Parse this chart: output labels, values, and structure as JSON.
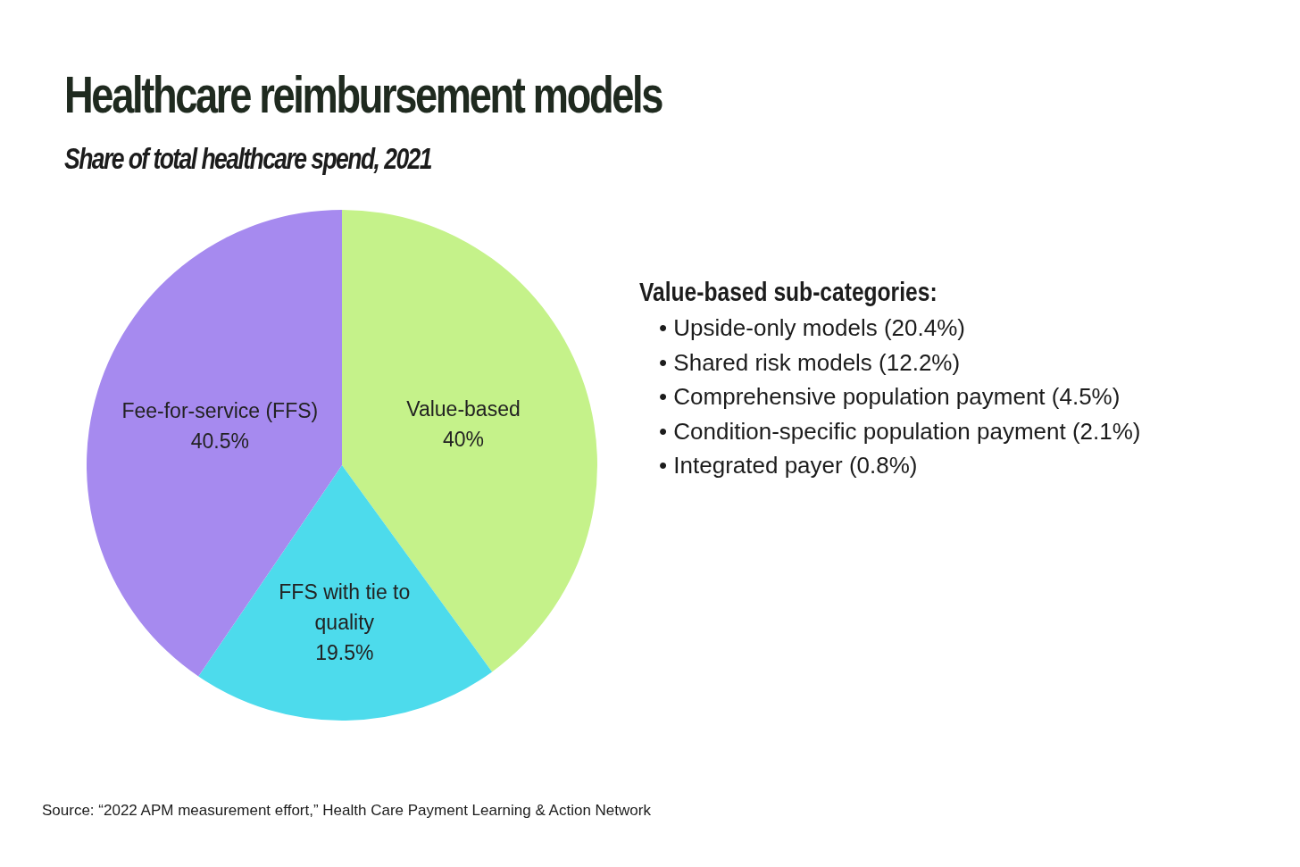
{
  "chart_data": {
    "type": "pie",
    "title": "Healthcare reimbursement models",
    "subtitle": "Share of total healthcare spend, 2021",
    "categories": [
      "Value-based",
      "FFS with tie to quality",
      "Fee-for-service (FFS)"
    ],
    "values": [
      40,
      19.5,
      40.5
    ],
    "colors": [
      "#c5f28a",
      "#4ddbec",
      "#a68aef"
    ],
    "value_labels": [
      "40%",
      "19.5%",
      "40.5%"
    ],
    "legend": false,
    "annotations": [
      "Value-based sub-categories:",
      "• Upside-only models (20.4%)",
      "• Shared risk models (12.2%)",
      "• Comprehensive population payment (4.5%)",
      "• Condition-specific population payment (2.1%)",
      "• Integrated payer (0.8%)",
      "Source: “2022 APM measurement effort,” Health Care Payment Learning & Action Network"
    ]
  }
}
